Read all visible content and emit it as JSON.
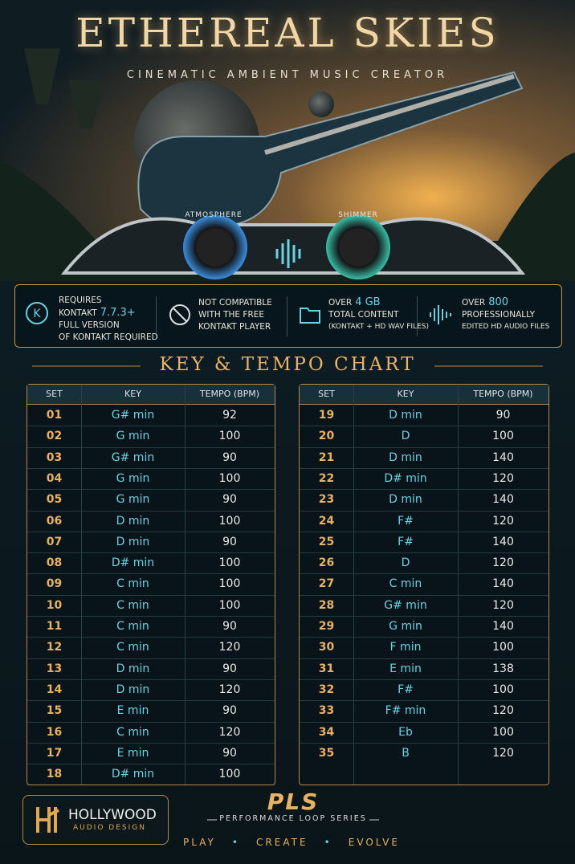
{
  "header": {
    "title": "ETHEREAL SKIES",
    "subtitle": "CINEMATIC AMBIENT MUSIC CREATOR"
  },
  "hero": {
    "knobs": [
      "ATMOSPHERE",
      "SHIMMER"
    ]
  },
  "features": [
    {
      "lines": [
        {
          "text": "REQUIRES"
        },
        {
          "text": "KONTAKT",
          "accent": "7.7.3+"
        },
        {
          "text": "FULL VERSION"
        },
        {
          "text": "OF KONTAKT REQUIRED"
        }
      ]
    },
    {
      "lines": [
        {
          "text": "NOT COMPATIBLE"
        },
        {
          "text": "WITH THE FREE"
        },
        {
          "text": "KONTAKT PLAYER"
        }
      ]
    },
    {
      "lines": [
        {
          "text": "OVER",
          "accent": "4 GB"
        },
        {
          "text": "TOTAL CONTENT"
        },
        {
          "text": "(KONTAKT + HD WAV FILES)"
        }
      ]
    },
    {
      "lines": [
        {
          "text": "OVER",
          "accent": "800"
        },
        {
          "text": "PROFESSIONALLY"
        },
        {
          "text": "EDITED HD AUDIO FILES"
        }
      ]
    }
  ],
  "chart_title": "KEY & TEMPO CHART",
  "tables": [
    {
      "columns": [
        "SET",
        "KEY",
        "TEMPO (BPM)"
      ],
      "rows": [
        [
          "01",
          "G# min",
          92
        ],
        [
          "02",
          "G min",
          100
        ],
        [
          "03",
          "G# min",
          90
        ],
        [
          "04",
          "G min",
          100
        ],
        [
          "05",
          "G min",
          90
        ],
        [
          "06",
          "D min",
          100
        ],
        [
          "07",
          "D min",
          90
        ],
        [
          "08",
          "D# min",
          100
        ],
        [
          "09",
          "C min",
          100
        ],
        [
          "10",
          "C min",
          100
        ],
        [
          "11",
          "C min",
          90
        ],
        [
          "12",
          "C min",
          120
        ],
        [
          "13",
          "D min",
          90
        ],
        [
          "14",
          "D min",
          120
        ],
        [
          "15",
          "E min",
          90
        ],
        [
          "16",
          "C min",
          120
        ],
        [
          "17",
          "E min",
          90
        ],
        [
          "18",
          "D# min",
          100
        ]
      ]
    },
    {
      "columns": [
        "SET",
        "KEY",
        "TEMPO (BPM)"
      ],
      "rows": [
        [
          "19",
          "D min",
          90
        ],
        [
          "20",
          "D",
          100
        ],
        [
          "21",
          "D min",
          140
        ],
        [
          "22",
          "D# min",
          120
        ],
        [
          "23",
          "D min",
          140
        ],
        [
          "24",
          "F#",
          120
        ],
        [
          "25",
          "F#",
          140
        ],
        [
          "26",
          "D",
          120
        ],
        [
          "27",
          "C min",
          140
        ],
        [
          "28",
          "G# min",
          120
        ],
        [
          "29",
          "G min",
          140
        ],
        [
          "30",
          "F min",
          100
        ],
        [
          "31",
          "E min",
          138
        ],
        [
          "32",
          "F#",
          100
        ],
        [
          "33",
          "F# min",
          120
        ],
        [
          "34",
          "Eb",
          100
        ],
        [
          "35",
          "B",
          120
        ]
      ]
    }
  ],
  "footer": {
    "brand": "HOLLYWOOD",
    "brand_sub": "AUDIO DESIGN",
    "logo": "PLS",
    "series": "PERFORMANCE LOOP SERIES",
    "tagline": [
      "PLAY",
      "CREATE",
      "EVOLVE"
    ]
  }
}
